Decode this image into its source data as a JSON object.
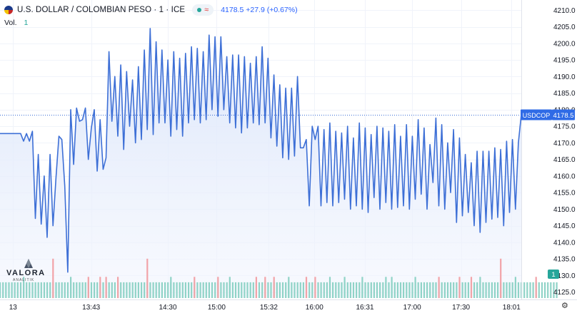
{
  "header": {
    "title": "U.S. DOLLAR / COLOMBIAN PESO · 1 · ICE",
    "approx_symbol": "≈",
    "quote": "4178.5 +27.9 (+0.67%)",
    "volume_label": "Vol.",
    "volume_value": "1"
  },
  "logo": {
    "word": "VALORA",
    "sub": "ANALITIK"
  },
  "icons": {
    "flag": "us-co-flag-icon",
    "status": "market-status-icon",
    "settings": "gear-icon"
  },
  "colors": {
    "line": "#3d6fd6",
    "area_top": "#d9e4fb",
    "area_bottom": "#f3f6fd",
    "vol_up": "#8fd3c7",
    "vol_down": "#f2a3a8",
    "price_label_bg": "#2f6be6",
    "badge_bg": "#26a69a"
  },
  "chart_data": {
    "type": "line",
    "symbol": "USDCOP",
    "last_price": 4178.5,
    "last_price_label": "4178.5",
    "y_ticks": [
      "4210.0",
      "4205.0",
      "4200.0",
      "4195.0",
      "4190.0",
      "4185.0",
      "4180.0",
      "4175.0",
      "4170.0",
      "4165.0",
      "4160.0",
      "4155.0",
      "4150.0",
      "4145.0",
      "4140.0",
      "4135.0",
      "4130.0",
      "4125.0"
    ],
    "y_tick_values": [
      4210,
      4205,
      4200,
      4195,
      4190,
      4185,
      4180,
      4175,
      4170,
      4165,
      4160,
      4155,
      4150,
      4145,
      4140,
      4135,
      4130,
      4125
    ],
    "ylim": [
      4123.2,
      4212.0
    ],
    "x_ticks": [
      "13",
      "13:43",
      "14:30",
      "15:00",
      "15:32",
      "16:00",
      "16:31",
      "17:00",
      "17:30",
      "18:01"
    ],
    "x_tick_times": [
      -5,
      43,
      90,
      120,
      152,
      180,
      211,
      240,
      270,
      301
    ],
    "x_range": [
      -13,
      307
    ],
    "volume_badge": "1",
    "volume_ylim": [
      0,
      10
    ],
    "prices": [
      4172.8,
      4172.8,
      4172.8,
      4172.8,
      4172.8,
      4172.8,
      4172.8,
      4172.8,
      4170.5,
      4172.8,
      4170.5,
      4173.5,
      4147.2,
      4166.5,
      4145.5,
      4160.0,
      4141.5,
      4166.5,
      4145.0,
      4159.5,
      4172.0,
      4171.0,
      4157.0,
      4131.0,
      4180.0,
      4163.5,
      4180.5,
      4176.5,
      4177.0,
      4180.5,
      4165.0,
      4174.5,
      4180.0,
      4161.5,
      4177.0,
      4162.0,
      4165.5,
      4197.5,
      4176.5,
      4190.0,
      4172.0,
      4193.5,
      4168.0,
      4191.5,
      4175.0,
      4189.0,
      4170.0,
      4193.0,
      4171.0,
      4198.0,
      4174.0,
      4204.5,
      4172.5,
      4200.5,
      4176.0,
      4198.0,
      4176.0,
      4195.0,
      4172.0,
      4197.5,
      4174.0,
      4195.5,
      4172.0,
      4197.0,
      4176.0,
      4199.0,
      4177.0,
      4198.5,
      4176.0,
      4197.5,
      4177.0,
      4202.5,
      4180.0,
      4202.0,
      4178.0,
      4202.0,
      4180.0,
      4196.0,
      4176.0,
      4196.5,
      4174.5,
      4196.5,
      4173.0,
      4196.0,
      4174.5,
      4194.0,
      4176.0,
      4196.0,
      4175.5,
      4199.0,
      4176.0,
      4195.5,
      4171.5,
      4190.5,
      4169.0,
      4187.5,
      4165.5,
      4186.5,
      4165.0,
      4186.5,
      4166.0,
      4190.0,
      4168.5,
      4168.5,
      4171.0,
      4151.0,
      4175.0,
      4171.0,
      4175.0,
      4151.0,
      4174.0,
      4152.0,
      4176.0,
      4151.0,
      4173.5,
      4152.0,
      4173.0,
      4153.0,
      4175.0,
      4150.0,
      4171.5,
      4151.0,
      4176.0,
      4150.0,
      4174.5,
      4149.0,
      4172.5,
      4153.5,
      4175.0,
      4150.0,
      4174.5,
      4152.0,
      4173.5,
      4150.0,
      4175.5,
      4150.5,
      4172.0,
      4151.0,
      4175.5,
      4150.0,
      4172.0,
      4153.0,
      4177.0,
      4154.5,
      4174.5,
      4150.0,
      4169.5,
      4158.0,
      4177.5,
      4151.0,
      4175.5,
      4150.0,
      4170.0,
      4155.0,
      4174.0,
      4146.0,
      4171.5,
      4148.0,
      4166.5,
      4149.0,
      4164.0,
      4145.0,
      4167.5,
      4143.0,
      4167.5,
      4146.0,
      4167.5,
      4147.0,
      4168.5,
      4147.5,
      4168.0,
      4145.0,
      4170.5,
      4149.0,
      4171.0,
      4150.0,
      4170.0,
      4178.5
    ],
    "volume_up": [
      2.6,
      2.6,
      2.6,
      2.6,
      2.6,
      2.6,
      2.6,
      2.6,
      2.6,
      2.6,
      2.6,
      2.6,
      2.6,
      2.6,
      2.6,
      2.6,
      2.6,
      2.6,
      2.6,
      2.6,
      2.6,
      2.6,
      2.6,
      2.6,
      2.6,
      2.6,
      2.6,
      2.6,
      2.6,
      2.6,
      2.6,
      2.6,
      2.6,
      2.6,
      2.6,
      2.6,
      2.6,
      2.6,
      2.6,
      2.6,
      2.6,
      2.6,
      2.6,
      2.6,
      2.6,
      2.6,
      2.6,
      2.6,
      2.6,
      2.6,
      2.6,
      2.6,
      2.6,
      2.6,
      2.6,
      2.6,
      2.6,
      2.6,
      2.6,
      2.6,
      2.6,
      2.6,
      2.6,
      2.6,
      2.6,
      2.6,
      2.6,
      2.6,
      2.6,
      2.6,
      2.6,
      2.6,
      2.6,
      2.6,
      2.6,
      2.6,
      2.6,
      2.6,
      2.6,
      2.6,
      2.6,
      2.6,
      2.6,
      2.6,
      2.6,
      2.6,
      2.6,
      2.6,
      2.6,
      2.6,
      2.6,
      2.6,
      2.6,
      2.6,
      2.6,
      2.6,
      2.6,
      2.6,
      2.6,
      2.6,
      2.6,
      2.6,
      2.6,
      2.6,
      2.6,
      2.6,
      2.6,
      2.6,
      2.6,
      2.6,
      2.6,
      2.6,
      2.6,
      2.6,
      2.6,
      2.6,
      2.6,
      2.6,
      2.6,
      2.6,
      2.6,
      2.6,
      2.6,
      2.6,
      2.6,
      2.6,
      2.6,
      2.6,
      2.6,
      2.6,
      2.6,
      2.6,
      2.6,
      2.6,
      2.6,
      2.6,
      2.6,
      2.6,
      2.6,
      2.6,
      2.6,
      2.6,
      2.6,
      2.6,
      2.6,
      2.6,
      2.6,
      2.6,
      2.6,
      2.6,
      2.6,
      2.6,
      2.6,
      2.6,
      2.6,
      2.6,
      2.6,
      2.6,
      2.6,
      2.6,
      2.6,
      2.6,
      2.6,
      2.6,
      2.6,
      2.6,
      2.6,
      2.6,
      2.6,
      2.6,
      2.6,
      2.6,
      2.6,
      2.6,
      2.6,
      2.6,
      2.6,
      2.6,
      2.6,
      2.6,
      2.6,
      2.6,
      2.6,
      2.6,
      2.6,
      2.6,
      2.6,
      2.6,
      2.6,
      2.6
    ],
    "volume_tall": [
      {
        "i": 8,
        "v": 3.5,
        "dir": "up"
      },
      {
        "i": 18,
        "v": 6.5,
        "dir": "down"
      },
      {
        "i": 24,
        "v": 3.5,
        "dir": "up"
      },
      {
        "i": 30,
        "v": 3.5,
        "dir": "down"
      },
      {
        "i": 34,
        "v": 3.5,
        "dir": "down"
      },
      {
        "i": 36,
        "v": 3.5,
        "dir": "down"
      },
      {
        "i": 40,
        "v": 3.5,
        "dir": "down"
      },
      {
        "i": 50,
        "v": 6.5,
        "dir": "down"
      },
      {
        "i": 58,
        "v": 3.5,
        "dir": "up"
      },
      {
        "i": 66,
        "v": 3.5,
        "dir": "down"
      },
      {
        "i": 74,
        "v": 3.5,
        "dir": "down"
      },
      {
        "i": 78,
        "v": 3.5,
        "dir": "up"
      },
      {
        "i": 87,
        "v": 3.5,
        "dir": "down"
      },
      {
        "i": 90,
        "v": 3.5,
        "dir": "down"
      },
      {
        "i": 93,
        "v": 3.5,
        "dir": "down"
      },
      {
        "i": 98,
        "v": 3.5,
        "dir": "up"
      },
      {
        "i": 104,
        "v": 3.5,
        "dir": "down"
      },
      {
        "i": 107,
        "v": 3.5,
        "dir": "down"
      },
      {
        "i": 112,
        "v": 3.5,
        "dir": "up"
      },
      {
        "i": 117,
        "v": 3.5,
        "dir": "up"
      },
      {
        "i": 123,
        "v": 3.5,
        "dir": "up"
      },
      {
        "i": 131,
        "v": 3.5,
        "dir": "up"
      },
      {
        "i": 133,
        "v": 3.5,
        "dir": "up"
      },
      {
        "i": 141,
        "v": 3.5,
        "dir": "up"
      },
      {
        "i": 149,
        "v": 3.5,
        "dir": "down"
      },
      {
        "i": 156,
        "v": 3.5,
        "dir": "down"
      },
      {
        "i": 160,
        "v": 3.5,
        "dir": "down"
      },
      {
        "i": 163,
        "v": 3.5,
        "dir": "up"
      },
      {
        "i": 170,
        "v": 6.5,
        "dir": "down"
      },
      {
        "i": 175,
        "v": 3.5,
        "dir": "up"
      },
      {
        "i": 182,
        "v": 3.5,
        "dir": "down"
      }
    ]
  }
}
